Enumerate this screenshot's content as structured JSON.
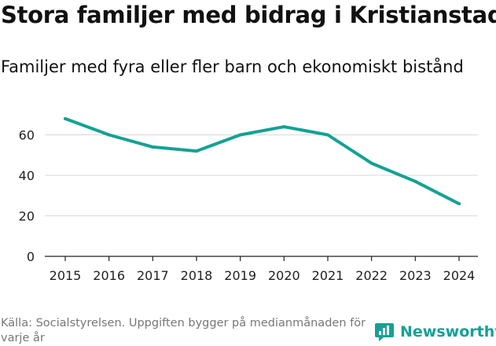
{
  "header": {
    "title": "Stora familjer med bidrag i Kristianstad",
    "subtitle": "Familjer med fyra eller fler barn och ekonomiskt bistånd"
  },
  "footer": {
    "source": "Källa: Socialstyrelsen. Uppgiften bygger på medianmånaden för varje år",
    "brand": "Newsworthy"
  },
  "colors": {
    "line": "#14a195",
    "grid": "#d9d9d9",
    "axis": "#222222"
  },
  "chart_data": {
    "type": "line",
    "title": "Stora familjer med bidrag i Kristianstad",
    "subtitle": "Familjer med fyra eller fler barn och ekonomiskt bistånd",
    "xlabel": "",
    "ylabel": "",
    "x": [
      "2015",
      "2016",
      "2017",
      "2018",
      "2019",
      "2020",
      "2021",
      "2022",
      "2023",
      "2024"
    ],
    "series": [
      {
        "name": "Familjer",
        "values": [
          68,
          60,
          54,
          52,
          60,
          64,
          60,
          46,
          37,
          26
        ]
      }
    ],
    "yticks": [
      0,
      20,
      40,
      60
    ],
    "ylim": [
      0,
      72
    ],
    "grid": true,
    "legend": "none"
  }
}
